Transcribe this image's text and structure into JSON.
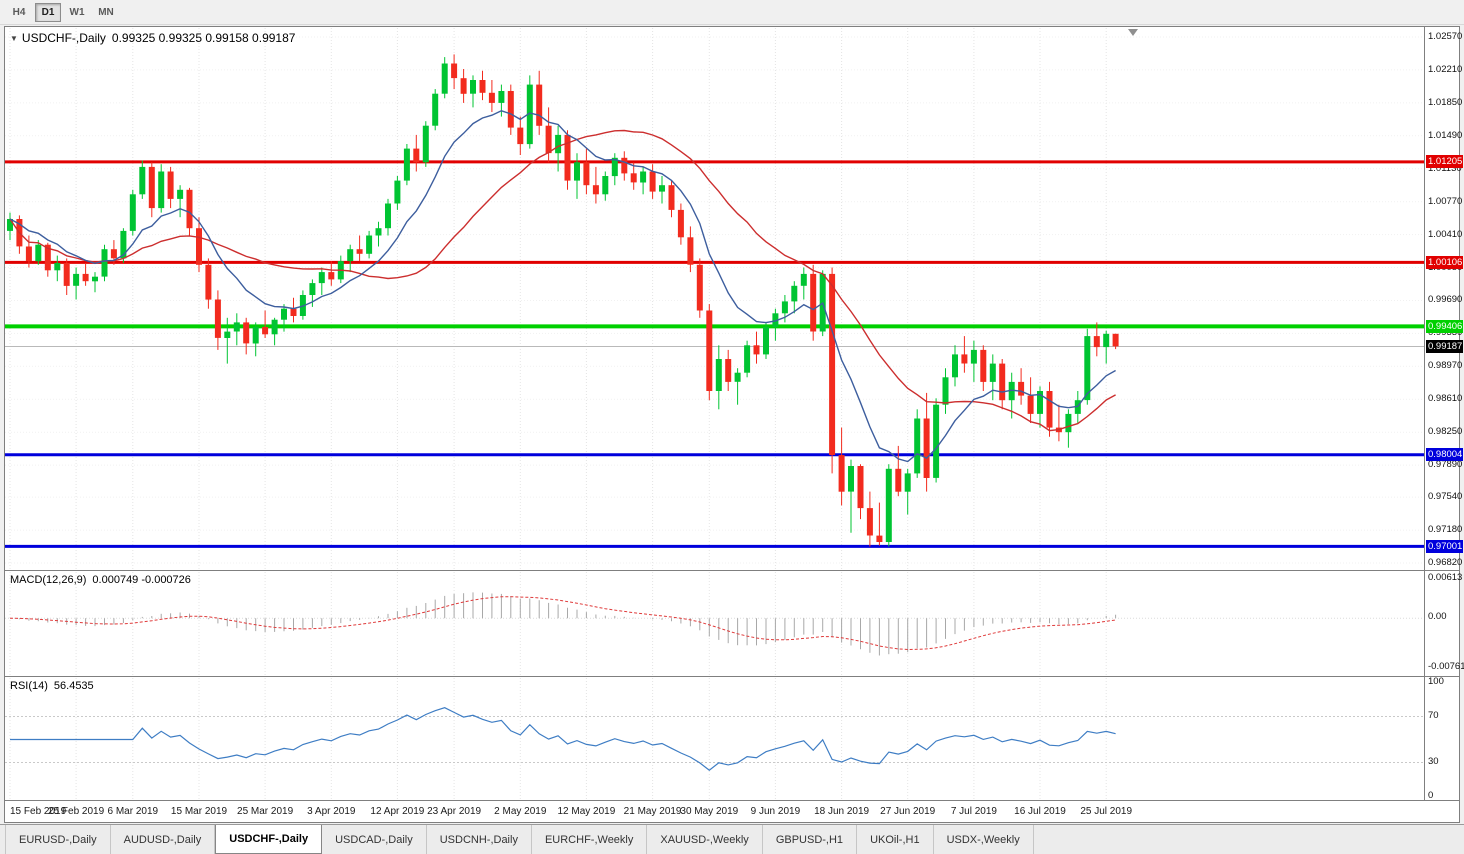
{
  "toolbar": {
    "timeframes": [
      {
        "label": "H4",
        "active": false
      },
      {
        "label": "D1",
        "active": true
      },
      {
        "label": "W1",
        "active": false
      },
      {
        "label": "MN",
        "active": false
      }
    ]
  },
  "chart": {
    "symbol": "USDCHF-,Daily",
    "ohlc": "0.99325 0.99325 0.99158 0.99187"
  },
  "indicators": {
    "macd": {
      "name": "MACD(12,26,9)",
      "values": "0.000749 -0.000726",
      "axis_labels": [
        "0.00613",
        "0.00",
        "-0.00761"
      ]
    },
    "rsi": {
      "name": "RSI(14)",
      "value": "56.4535",
      "axis_labels": [
        "100",
        "70",
        "30",
        "0"
      ]
    }
  },
  "chart_data": {
    "type": "candlestick",
    "symbol": "USDCHF",
    "timeframe": "Daily",
    "ylim": [
      0.9682,
      1.0257
    ],
    "price_axis_labels": [
      "1.02570",
      "1.02210",
      "1.01850",
      "1.01490",
      "1.01130",
      "1.00770",
      "1.00410",
      "1.00050",
      "0.99690",
      "0.99330",
      "0.98970",
      "0.98610",
      "0.98250",
      "0.97890",
      "0.97540",
      "0.97180",
      "0.96820"
    ],
    "date_labels": [
      "15 Feb 2019",
      "25 Feb 2019",
      "6 Mar 2019",
      "15 Mar 2019",
      "25 Mar 2019",
      "3 Apr 2019",
      "12 Apr 2019",
      "23 Apr 2019",
      "2 May 2019",
      "12 May 2019",
      "21 May 2019",
      "30 May 2019",
      "9 Jun 2019",
      "18 Jun 2019",
      "27 Jun 2019",
      "7 Jul 2019",
      "16 Jul 2019",
      "25 Jul 2019"
    ],
    "date_tick_indices": [
      0,
      7,
      13,
      20,
      27,
      34,
      41,
      47,
      54,
      61,
      68,
      74,
      81,
      88,
      95,
      102,
      109,
      116
    ],
    "levels": [
      {
        "value": 1.01205,
        "label": "1.01205",
        "color": "#e10000",
        "width": 3
      },
      {
        "value": 1.00106,
        "label": "1.00106",
        "color": "#e10000",
        "width": 3
      },
      {
        "value": 0.99406,
        "label": "0.99406",
        "color": "#00d000",
        "width": 4
      },
      {
        "value": 0.98004,
        "label": "0.98004",
        "color": "#0000dc",
        "width": 3
      },
      {
        "value": 0.97001,
        "label": "0.97001",
        "color": "#0000dc",
        "width": 3
      }
    ],
    "current_price": {
      "value": 0.99187,
      "label": "0.99187",
      "color": "#000000"
    },
    "last_bar": {
      "open": 0.99325,
      "high": 0.99325,
      "low": 0.99158,
      "close": 0.99187
    },
    "colors": {
      "up": "#00c432",
      "down": "#f22b1e",
      "ma_fast": "#3d5e9e",
      "ma_slow": "#cc2e2e",
      "macd_hist": "#a8a8a8",
      "macd_signal": "#df3a3a",
      "rsi": "#3e7dc4",
      "grid": "#e4e4e4"
    },
    "candles": [
      [
        1.0045,
        1.0065,
        1.0035,
        1.0058
      ],
      [
        1.0058,
        1.0062,
        1.002,
        1.0028
      ],
      [
        1.0028,
        1.004,
        1.0005,
        1.0012
      ],
      [
        1.0012,
        1.0035,
        1.0008,
        1.003
      ],
      [
        1.003,
        1.0032,
        0.9995,
        1.0002
      ],
      [
        1.0002,
        1.0018,
        0.999,
        1.001
      ],
      [
        1.001,
        1.0015,
        0.9975,
        0.9985
      ],
      [
        0.9985,
        1.0005,
        0.997,
        0.9998
      ],
      [
        0.9998,
        1.001,
        0.9985,
        0.999
      ],
      [
        0.999,
        1.0,
        0.9978,
        0.9995
      ],
      [
        0.9995,
        1.003,
        0.999,
        1.0025
      ],
      [
        1.0025,
        1.0035,
        1.0008,
        1.0015
      ],
      [
        1.0015,
        1.0048,
        1.001,
        1.0045
      ],
      [
        1.0045,
        1.009,
        1.004,
        1.0085
      ],
      [
        1.0085,
        1.0122,
        1.008,
        1.0115
      ],
      [
        1.0115,
        1.012,
        1.006,
        1.007
      ],
      [
        1.007,
        1.0118,
        1.0065,
        1.011
      ],
      [
        1.011,
        1.0115,
        1.007,
        1.008
      ],
      [
        1.008,
        1.0095,
        1.006,
        1.009
      ],
      [
        1.009,
        1.0092,
        1.004,
        1.0048
      ],
      [
        1.0048,
        1.006,
        1.0,
        1.0008
      ],
      [
        1.0008,
        1.0015,
        0.996,
        0.997
      ],
      [
        0.997,
        0.998,
        0.9915,
        0.9928
      ],
      [
        0.9928,
        0.995,
        0.99,
        0.9935
      ],
      [
        0.9935,
        0.9955,
        0.992,
        0.9945
      ],
      [
        0.9945,
        0.995,
        0.991,
        0.9922
      ],
      [
        0.9922,
        0.9945,
        0.9908,
        0.994
      ],
      [
        0.994,
        0.9958,
        0.9928,
        0.9932
      ],
      [
        0.9932,
        0.995,
        0.992,
        0.9948
      ],
      [
        0.9948,
        0.9965,
        0.9935,
        0.996
      ],
      [
        0.996,
        0.9972,
        0.9945,
        0.9952
      ],
      [
        0.9952,
        0.998,
        0.9948,
        0.9975
      ],
      [
        0.9975,
        0.9992,
        0.9962,
        0.9988
      ],
      [
        0.9988,
        1.0005,
        0.9975,
        1.0
      ],
      [
        1.0,
        1.0012,
        0.9985,
        0.9992
      ],
      [
        0.9992,
        1.0018,
        0.9988,
        1.0012
      ],
      [
        1.0012,
        1.003,
        1.0,
        1.0025
      ],
      [
        1.0025,
        1.004,
        1.0012,
        1.002
      ],
      [
        1.002,
        1.0045,
        1.0015,
        1.004
      ],
      [
        1.004,
        1.0055,
        1.0028,
        1.0048
      ],
      [
        1.0048,
        1.008,
        1.004,
        1.0075
      ],
      [
        1.0075,
        1.0105,
        1.0068,
        1.01
      ],
      [
        1.01,
        1.014,
        1.0095,
        1.0135
      ],
      [
        1.0135,
        1.015,
        1.011,
        1.012
      ],
      [
        1.012,
        1.0165,
        1.0115,
        1.016
      ],
      [
        1.016,
        1.02,
        1.0155,
        1.0195
      ],
      [
        1.0195,
        1.0235,
        1.019,
        1.0228
      ],
      [
        1.0228,
        1.0238,
        1.02,
        1.0212
      ],
      [
        1.0212,
        1.0222,
        1.0185,
        1.0195
      ],
      [
        1.0195,
        1.0215,
        1.018,
        1.021
      ],
      [
        1.021,
        1.022,
        1.0188,
        1.0196
      ],
      [
        1.0196,
        1.021,
        1.0175,
        1.0185
      ],
      [
        1.0185,
        1.0205,
        1.017,
        1.0198
      ],
      [
        1.0198,
        1.0205,
        1.015,
        1.0158
      ],
      [
        1.0158,
        1.017,
        1.0128,
        1.014
      ],
      [
        1.014,
        1.0215,
        1.0135,
        1.0205
      ],
      [
        1.0205,
        1.022,
        1.015,
        1.016
      ],
      [
        1.016,
        1.018,
        1.012,
        1.013
      ],
      [
        1.013,
        1.016,
        1.011,
        1.015
      ],
      [
        1.015,
        1.0155,
        1.009,
        1.01
      ],
      [
        1.01,
        1.013,
        1.008,
        1.012
      ],
      [
        1.012,
        1.0135,
        1.0085,
        1.0095
      ],
      [
        1.0095,
        1.0115,
        1.0075,
        1.0085
      ],
      [
        1.0085,
        1.011,
        1.0078,
        1.0105
      ],
      [
        1.0105,
        1.013,
        1.0095,
        1.0125
      ],
      [
        1.0125,
        1.0132,
        1.01,
        1.0108
      ],
      [
        1.0108,
        1.012,
        1.009,
        1.0098
      ],
      [
        1.0098,
        1.0115,
        1.0085,
        1.011
      ],
      [
        1.011,
        1.0118,
        1.008,
        1.0088
      ],
      [
        1.0088,
        1.0105,
        1.0075,
        1.0095
      ],
      [
        1.0095,
        1.01,
        1.006,
        1.0068
      ],
      [
        1.0068,
        1.0075,
        1.003,
        1.0038
      ],
      [
        1.0038,
        1.005,
        1.0,
        1.0008
      ],
      [
        1.0008,
        1.0015,
        0.995,
        0.9958
      ],
      [
        0.9958,
        0.9965,
        0.986,
        0.987
      ],
      [
        0.987,
        0.992,
        0.985,
        0.9905
      ],
      [
        0.9905,
        0.9915,
        0.987,
        0.988
      ],
      [
        0.988,
        0.9895,
        0.9855,
        0.989
      ],
      [
        0.989,
        0.9925,
        0.9885,
        0.992
      ],
      [
        0.992,
        0.9935,
        0.99,
        0.991
      ],
      [
        0.991,
        0.9945,
        0.9905,
        0.994
      ],
      [
        0.994,
        0.996,
        0.9925,
        0.9955
      ],
      [
        0.9955,
        0.9975,
        0.9945,
        0.9968
      ],
      [
        0.9968,
        0.999,
        0.9955,
        0.9985
      ],
      [
        0.9985,
        1.0005,
        0.997,
        0.9998
      ],
      [
        0.9998,
        1.0008,
        0.9925,
        0.9935
      ],
      [
        0.9935,
        1.0002,
        0.993,
        0.9998
      ],
      [
        0.9998,
        1.0005,
        0.978,
        0.98
      ],
      [
        0.98,
        0.983,
        0.9745,
        0.976
      ],
      [
        0.976,
        0.9795,
        0.9715,
        0.9788
      ],
      [
        0.9788,
        0.979,
        0.973,
        0.9742
      ],
      [
        0.9742,
        0.976,
        0.97,
        0.9712
      ],
      [
        0.9712,
        0.9748,
        0.9701,
        0.9705
      ],
      [
        0.9705,
        0.979,
        0.97,
        0.9785
      ],
      [
        0.9785,
        0.981,
        0.9755,
        0.976
      ],
      [
        0.976,
        0.9785,
        0.9735,
        0.978
      ],
      [
        0.978,
        0.985,
        0.9775,
        0.984
      ],
      [
        0.984,
        0.9868,
        0.976,
        0.9775
      ],
      [
        0.9775,
        0.9862,
        0.977,
        0.9855
      ],
      [
        0.9855,
        0.9895,
        0.9845,
        0.9885
      ],
      [
        0.9885,
        0.992,
        0.9875,
        0.991
      ],
      [
        0.991,
        0.993,
        0.989,
        0.99
      ],
      [
        0.99,
        0.9925,
        0.988,
        0.9915
      ],
      [
        0.9915,
        0.992,
        0.987,
        0.988
      ],
      [
        0.988,
        0.991,
        0.986,
        0.99
      ],
      [
        0.99,
        0.9905,
        0.985,
        0.986
      ],
      [
        0.986,
        0.989,
        0.984,
        0.988
      ],
      [
        0.988,
        0.9895,
        0.9855,
        0.9865
      ],
      [
        0.9865,
        0.9885,
        0.9835,
        0.9845
      ],
      [
        0.9845,
        0.9875,
        0.983,
        0.987
      ],
      [
        0.987,
        0.988,
        0.982,
        0.983
      ],
      [
        0.983,
        0.9855,
        0.9815,
        0.9825
      ],
      [
        0.9825,
        0.985,
        0.9808,
        0.9845
      ],
      [
        0.9845,
        0.987,
        0.9835,
        0.986
      ],
      [
        0.986,
        0.9938,
        0.9855,
        0.993
      ],
      [
        0.993,
        0.9945,
        0.9908,
        0.9918
      ],
      [
        0.9918,
        0.9936,
        0.99,
        0.99325
      ],
      [
        0.99325,
        0.99325,
        0.99158,
        0.99187
      ]
    ]
  },
  "tabs": [
    {
      "label": "EURUSD-,Daily",
      "active": false
    },
    {
      "label": "AUDUSD-,Daily",
      "active": false
    },
    {
      "label": "USDCHF-,Daily",
      "active": true
    },
    {
      "label": "USDCAD-,Daily",
      "active": false
    },
    {
      "label": "USDCNH-,Daily",
      "active": false
    },
    {
      "label": "EURCHF-,Weekly",
      "active": false
    },
    {
      "label": "XAUUSD-,Weekly",
      "active": false
    },
    {
      "label": "GBPUSD-,H1",
      "active": false
    },
    {
      "label": "UKOil-,H1",
      "active": false
    },
    {
      "label": "USDX-,Weekly",
      "active": false
    }
  ]
}
